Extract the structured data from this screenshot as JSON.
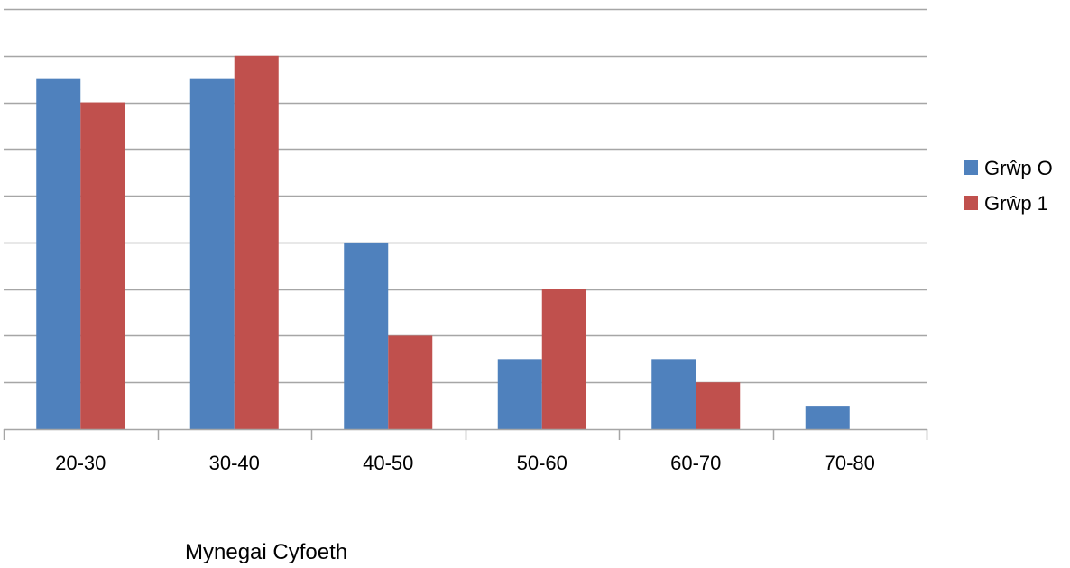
{
  "chart_data": {
    "type": "bar",
    "title": "",
    "xlabel": "Mynegai Cyfoeth",
    "ylabel": "",
    "categories": [
      "20-30",
      "30-40",
      "40-50",
      "50-60",
      "60-70",
      "70-80"
    ],
    "series": [
      {
        "name": "Grŵp O",
        "color": "#4f81bd",
        "values": [
          15,
          15,
          8,
          3,
          3,
          1
        ]
      },
      {
        "name": "Grŵp 1",
        "color": "#c0504d",
        "values": [
          14,
          16,
          4,
          6,
          2,
          0
        ]
      }
    ],
    "ylim": [
      0,
      18
    ],
    "ytick_step": 2,
    "grid": true,
    "legend": "right",
    "y_tick_labels_shown": false
  }
}
